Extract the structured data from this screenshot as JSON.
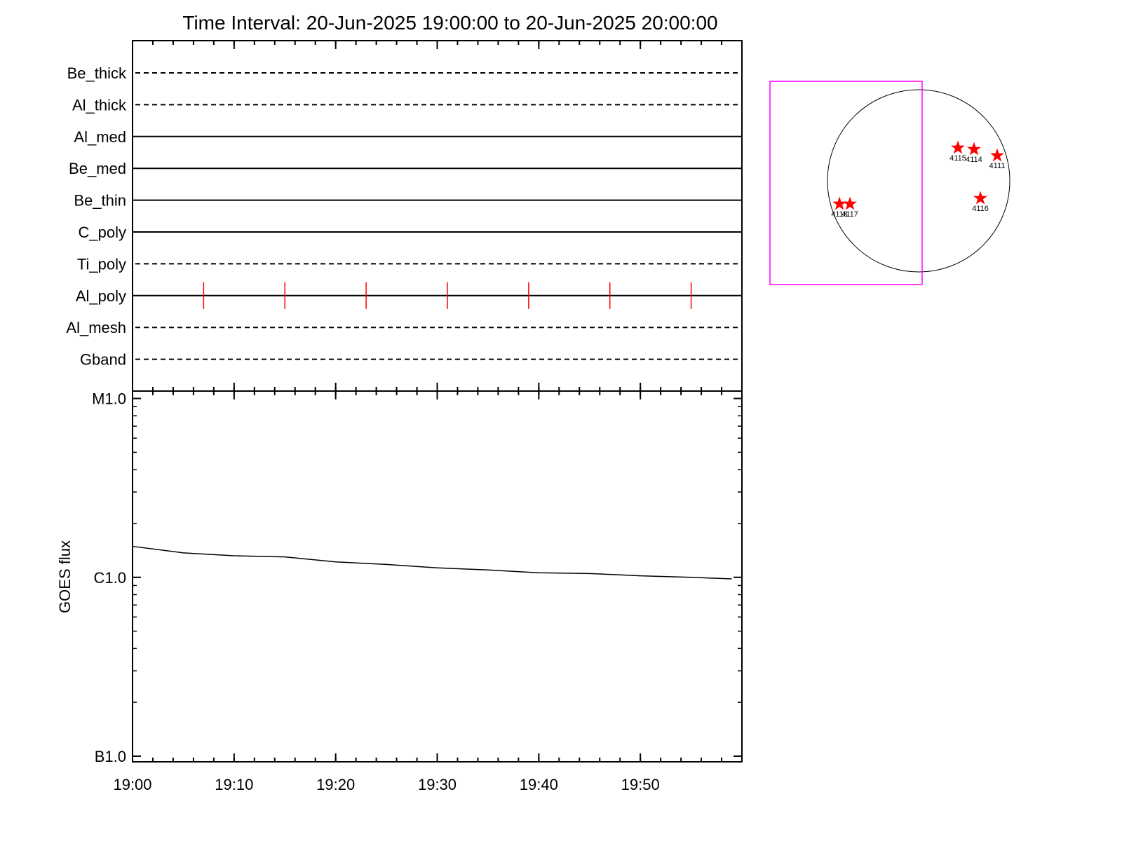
{
  "chart_data": [
    {
      "type": "timeline",
      "title": "Time Interval: 20-Jun-2025 19:00:00 to 20-Jun-2025 20:00:00",
      "categories": [
        "Be_thick",
        "Al_thick",
        "Al_med",
        "Be_med",
        "Be_thin",
        "C_poly",
        "Ti_poly",
        "Al_poly",
        "Al_mesh",
        "Gband"
      ],
      "line_styles": [
        "dashed",
        "dashed",
        "solid",
        "solid",
        "solid",
        "solid",
        "dashed",
        "solid",
        "dashed",
        "dashed"
      ],
      "events": [
        [],
        [],
        [],
        [],
        [],
        [],
        [],
        [
          "19:07",
          "19:15",
          "19:23",
          "19:31",
          "19:39",
          "19:47",
          "19:55"
        ],
        [],
        []
      ],
      "event_color": "#ff0000",
      "xlim": [
        "19:00",
        "20:00"
      ],
      "xticks": [
        "19:00",
        "19:10",
        "19:20",
        "19:30",
        "19:40",
        "19:50"
      ]
    },
    {
      "type": "line",
      "ylabel": "GOES flux",
      "log_scale": true,
      "color": "#000000",
      "x": [
        "19:00",
        "19:05",
        "19:10",
        "19:15",
        "19:20",
        "19:25",
        "19:30",
        "19:35",
        "19:40",
        "19:45",
        "19:50",
        "19:55",
        "19:59"
      ],
      "values": [
        1.49e-06,
        1.37e-06,
        1.32e-06,
        1.3e-06,
        1.22e-06,
        1.18e-06,
        1.13e-06,
        1.1e-06,
        1.06e-06,
        1.05e-06,
        1.02e-06,
        1e-06,
        9.8e-07
      ],
      "xlim": [
        "19:00",
        "20:00"
      ],
      "xticks": [
        "19:00",
        "19:10",
        "19:20",
        "19:30",
        "19:40",
        "19:50"
      ],
      "ylim": [
        9.3e-08,
        1.1e-05
      ],
      "yticks": [
        {
          "value": 1e-05,
          "label": "M1.0"
        },
        {
          "value": 1e-06,
          "label": "C1.0"
        },
        {
          "value": 1e-07,
          "label": "B1.0"
        }
      ]
    },
    {
      "type": "map",
      "rsun": 945,
      "x": [
        407,
        574,
        814,
        640,
        -821,
        -712
      ],
      "y": [
        342,
        327,
        262,
        -182,
        -240,
        -240
      ],
      "labels": [
        "4115",
        "4114",
        "4111",
        "4116",
        "4118",
        "4117"
      ],
      "color": "#ff0000",
      "fov": {
        "x": [
          -1541,
          36
        ],
        "y": [
          -1076,
          1032
        ],
        "color": "#ff00ff"
      }
    }
  ]
}
